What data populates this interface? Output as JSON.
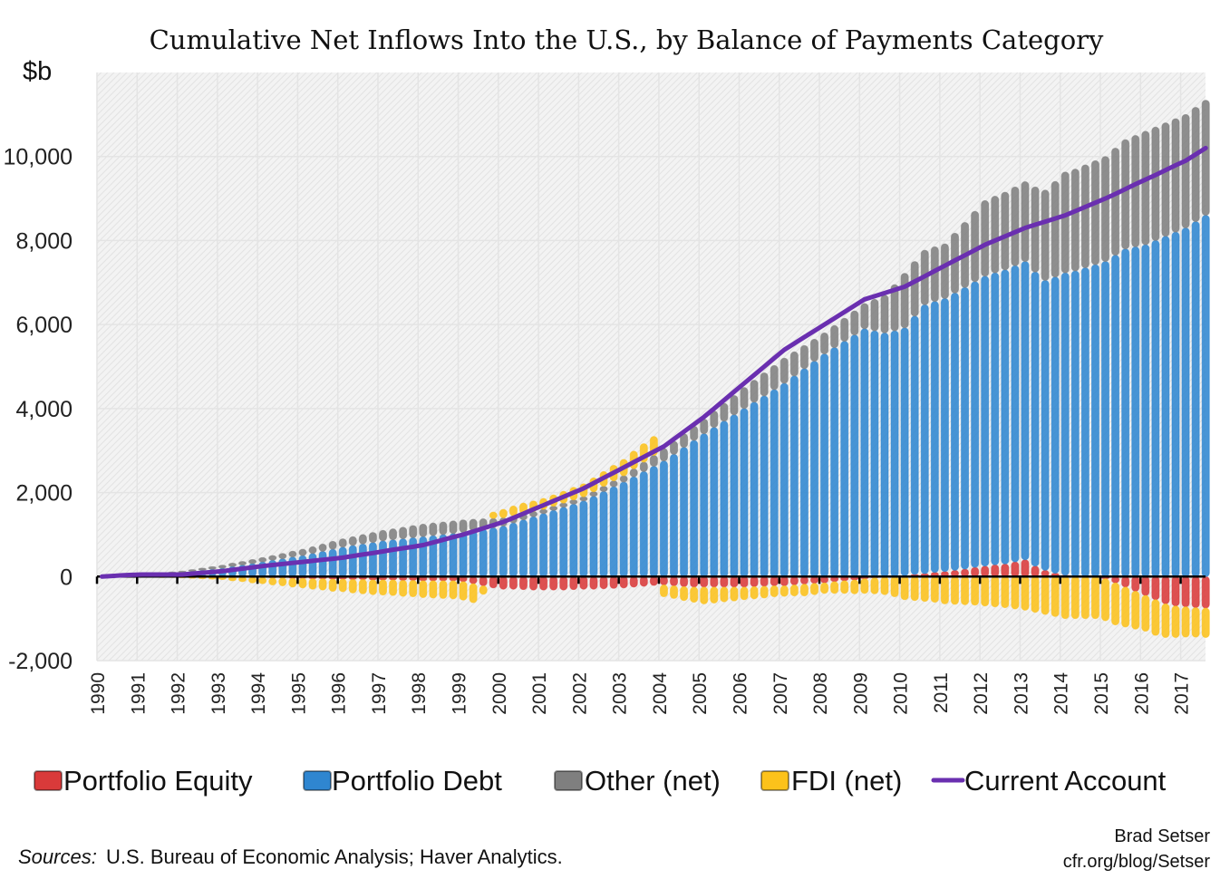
{
  "chart_data": {
    "type": "bar",
    "title": "Cumulative Net Inflows Into the U.S., by Balance of Payments Category",
    "ylabel": "$b",
    "xlabel": "",
    "ylim": [
      -2000,
      12000
    ],
    "yticks": [
      -2000,
      0,
      2000,
      4000,
      6000,
      8000,
      10000
    ],
    "ytick_labels": [
      "-2,000",
      "0",
      "2,000",
      "4,000",
      "6,000",
      "8,000",
      "10,000"
    ],
    "x_start": "1990Q1",
    "frequency": "quarterly",
    "xtick_labels": [
      "1990",
      "1991",
      "1992",
      "1993",
      "1994",
      "1995",
      "1996",
      "1997",
      "1998",
      "1999",
      "2000",
      "2001",
      "2002",
      "2003",
      "2004",
      "2005",
      "2006",
      "2007",
      "2008",
      "2009",
      "2010",
      "2011",
      "2012",
      "2013",
      "2014",
      "2015",
      "2016",
      "2017"
    ],
    "grid": true,
    "legend_position": "bottom",
    "series": [
      {
        "name": "Portfolio Equity",
        "kind": "bar",
        "color": "#d93a3a",
        "values": [
          0,
          0,
          0,
          0,
          0,
          0,
          0,
          0,
          0,
          0,
          0,
          0,
          0,
          -10,
          -10,
          -20,
          -20,
          -30,
          -30,
          -40,
          -40,
          -50,
          -50,
          -60,
          -60,
          -70,
          -70,
          -80,
          -80,
          -80,
          -90,
          -90,
          -100,
          -100,
          -100,
          -100,
          -120,
          -170,
          -220,
          -270,
          -300,
          -300,
          -310,
          -320,
          -320,
          -320,
          -320,
          -310,
          -300,
          -300,
          -290,
          -280,
          -270,
          -250,
          -230,
          -210,
          -200,
          -220,
          -240,
          -250,
          -250,
          -250,
          -250,
          -250,
          -250,
          -240,
          -230,
          -220,
          -220,
          -200,
          -180,
          -160,
          -150,
          -120,
          -100,
          -80,
          -50,
          -30,
          -10,
          0,
          20,
          50,
          70,
          100,
          120,
          150,
          180,
          220,
          250,
          280,
          300,
          350,
          400,
          250,
          150,
          80,
          30,
          0,
          0,
          0,
          -50,
          -150,
          -250,
          -350,
          -450,
          -550,
          -650,
          -700,
          -720,
          -740,
          -750
        ]
      },
      {
        "name": "Portfolio Debt",
        "kind": "bar",
        "color": "#2f86d0",
        "values": [
          0,
          10,
          20,
          35,
          45,
          60,
          70,
          85,
          100,
          125,
          150,
          175,
          200,
          240,
          275,
          310,
          350,
          390,
          425,
          465,
          500,
          550,
          600,
          650,
          700,
          740,
          775,
          810,
          850,
          875,
          900,
          925,
          950,
          975,
          1000,
          1025,
          1050,
          1090,
          1125,
          1160,
          1200,
          1275,
          1350,
          1425,
          1500,
          1575,
          1650,
          1725,
          1800,
          1910,
          2025,
          2140,
          2250,
          2375,
          2500,
          2625,
          2750,
          2910,
          3075,
          3240,
          3400,
          3550,
          3700,
          3850,
          4000,
          4150,
          4300,
          4450,
          4600,
          4775,
          4950,
          5125,
          5300,
          5450,
          5600,
          5750,
          5900,
          5850,
          5800,
          5850,
          5900,
          6150,
          6400,
          6450,
          6500,
          6600,
          6700,
          6800,
          6900,
          6950,
          7000,
          7050,
          7100,
          7000,
          6900,
          7050,
          7200,
          7275,
          7350,
          7425,
          7500,
          7650,
          7800,
          7850,
          7900,
          8000,
          8100,
          8200,
          8300,
          8450,
          8600
        ]
      },
      {
        "name": "Other (net)",
        "kind": "bar",
        "color": "#7f7f7f",
        "values": [
          0,
          5,
          10,
          15,
          15,
          20,
          20,
          25,
          30,
          40,
          50,
          60,
          70,
          80,
          85,
          95,
          100,
          110,
          125,
          140,
          150,
          160,
          175,
          190,
          200,
          210,
          225,
          240,
          250,
          260,
          275,
          290,
          300,
          300,
          300,
          300,
          300,
          275,
          250,
          225,
          200,
          175,
          150,
          125,
          100,
          100,
          100,
          100,
          100,
          110,
          125,
          140,
          150,
          190,
          225,
          260,
          300,
          310,
          325,
          340,
          350,
          390,
          425,
          460,
          500,
          525,
          550,
          575,
          600,
          575,
          550,
          525,
          500,
          525,
          550,
          575,
          600,
          750,
          900,
          1100,
          1300,
          1300,
          1300,
          1300,
          1300,
          1425,
          1550,
          1675,
          1800,
          1825,
          1850,
          1875,
          1900,
          2025,
          2150,
          2275,
          2400,
          2425,
          2450,
          2475,
          2500,
          2550,
          2600,
          2650,
          2700,
          2700,
          2700,
          2700,
          2700,
          2720,
          2740
        ]
      },
      {
        "name": "FDI (net)",
        "kind": "bar",
        "color": "#fcc21b",
        "values": [
          0,
          10,
          20,
          30,
          20,
          0,
          -10,
          -20,
          -30,
          -40,
          -50,
          -60,
          -70,
          -90,
          -110,
          -130,
          -150,
          -170,
          -190,
          -210,
          -230,
          -250,
          -270,
          -290,
          -300,
          -320,
          -340,
          -350,
          -360,
          -370,
          -380,
          -390,
          -400,
          -410,
          -420,
          -430,
          -440,
          -450,
          -200,
          150,
          200,
          230,
          250,
          250,
          260,
          270,
          280,
          300,
          310,
          330,
          350,
          370,
          390,
          420,
          440,
          450,
          -280,
          -300,
          -330,
          -360,
          -400,
          -380,
          -350,
          -330,
          -300,
          -290,
          -280,
          -260,
          -250,
          -260,
          -280,
          -270,
          -250,
          -280,
          -300,
          -330,
          -350,
          -380,
          -420,
          -480,
          -550,
          -570,
          -590,
          -610,
          -650,
          -660,
          -670,
          -680,
          -700,
          -720,
          -740,
          -770,
          -800,
          -850,
          -900,
          -950,
          -1000,
          -1000,
          -1000,
          -1000,
          -1000,
          -1000,
          -950,
          -900,
          -850,
          -850,
          -800,
          -750,
          -720,
          -700,
          -700
        ]
      },
      {
        "name": "Current Account",
        "kind": "line",
        "color": "#6a2fb0",
        "values": [
          0,
          15,
          30,
          40,
          50,
          50,
          50,
          50,
          50,
          70,
          90,
          110,
          130,
          160,
          190,
          220,
          250,
          275,
          300,
          325,
          350,
          375,
          400,
          425,
          450,
          490,
          525,
          560,
          600,
          640,
          675,
          710,
          750,
          810,
          875,
          940,
          1000,
          1075,
          1150,
          1225,
          1300,
          1400,
          1500,
          1600,
          1700,
          1800,
          1900,
          2000,
          2100,
          2225,
          2350,
          2475,
          2600,
          2725,
          2850,
          2975,
          3100,
          3275,
          3450,
          3625,
          3800,
          4000,
          4200,
          4400,
          4600,
          4800,
          5000,
          5200,
          5400,
          5550,
          5700,
          5850,
          6000,
          6150,
          6300,
          6450,
          6600,
          6675,
          6750,
          6825,
          6900,
          7025,
          7150,
          7275,
          7400,
          7525,
          7650,
          7775,
          7900,
          8000,
          8100,
          8200,
          8300,
          8375,
          8450,
          8525,
          8600,
          8700,
          8800,
          8900,
          9000,
          9110,
          9225,
          9340,
          9450,
          9560,
          9675,
          9790,
          9900,
          10050,
          10200
        ]
      }
    ]
  },
  "sources": {
    "label": "Sources:",
    "text": "U.S. Bureau of Economic Analysis; Haver Analytics."
  },
  "credit": {
    "author": "Brad Setser",
    "url": "cfr.org/blog/Setser"
  }
}
